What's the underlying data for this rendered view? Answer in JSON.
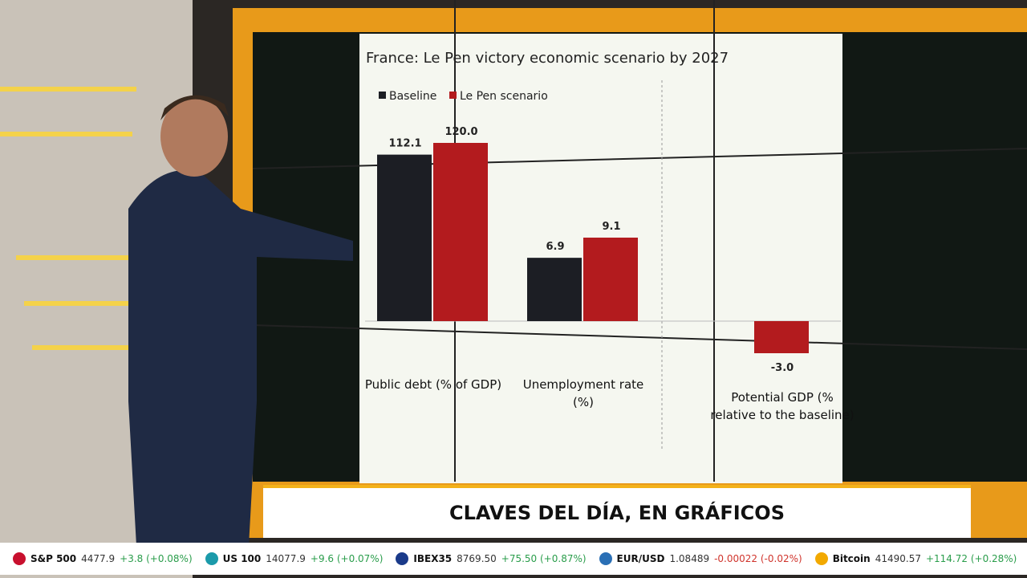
{
  "chart_data": {
    "type": "bar",
    "title": "France: Le Pen victory economic scenario by 2027",
    "categories": [
      "Public debt (% of GDP)",
      "Unemployment rate (%)",
      "Potential GDP (% relative to the baseline)"
    ],
    "series": [
      {
        "name": "Baseline",
        "color": "#1c1e24",
        "values": [
          112.1,
          6.9,
          null
        ],
        "value_labels": [
          "112.1",
          "6.9",
          null
        ]
      },
      {
        "name": "Le Pen scenario",
        "color": "#b31b1e",
        "values": [
          120.0,
          9.1,
          -3.0
        ],
        "value_labels": [
          "120.0",
          "9.1",
          "-3.0"
        ]
      }
    ],
    "legend": "top-left"
  },
  "banner": "CLAVES DEL DÍA, EN GRÁFICOS",
  "ticker": [
    {
      "name": "S&P 500",
      "value": "4477.9",
      "change": "+3.8 (+0.08%)",
      "color": "#c8102e"
    },
    {
      "name": "US 100",
      "value": "14077.9",
      "change": "+9.6 (+0.07%)",
      "color": "#1b9aaa"
    },
    {
      "name": "IBEX35",
      "value": "8769.50",
      "change": "+75.50 (+0.87%)",
      "color": "#1a3a8a"
    },
    {
      "name": "EUR/USD",
      "value": "1.08489",
      "change": "-0.00022 (-0.02%)",
      "color": "#2a6fb5"
    },
    {
      "name": "Bitcoin",
      "value": "41490.57",
      "change": "+114.72 (+0.28%)",
      "color": "#f2a900"
    }
  ]
}
